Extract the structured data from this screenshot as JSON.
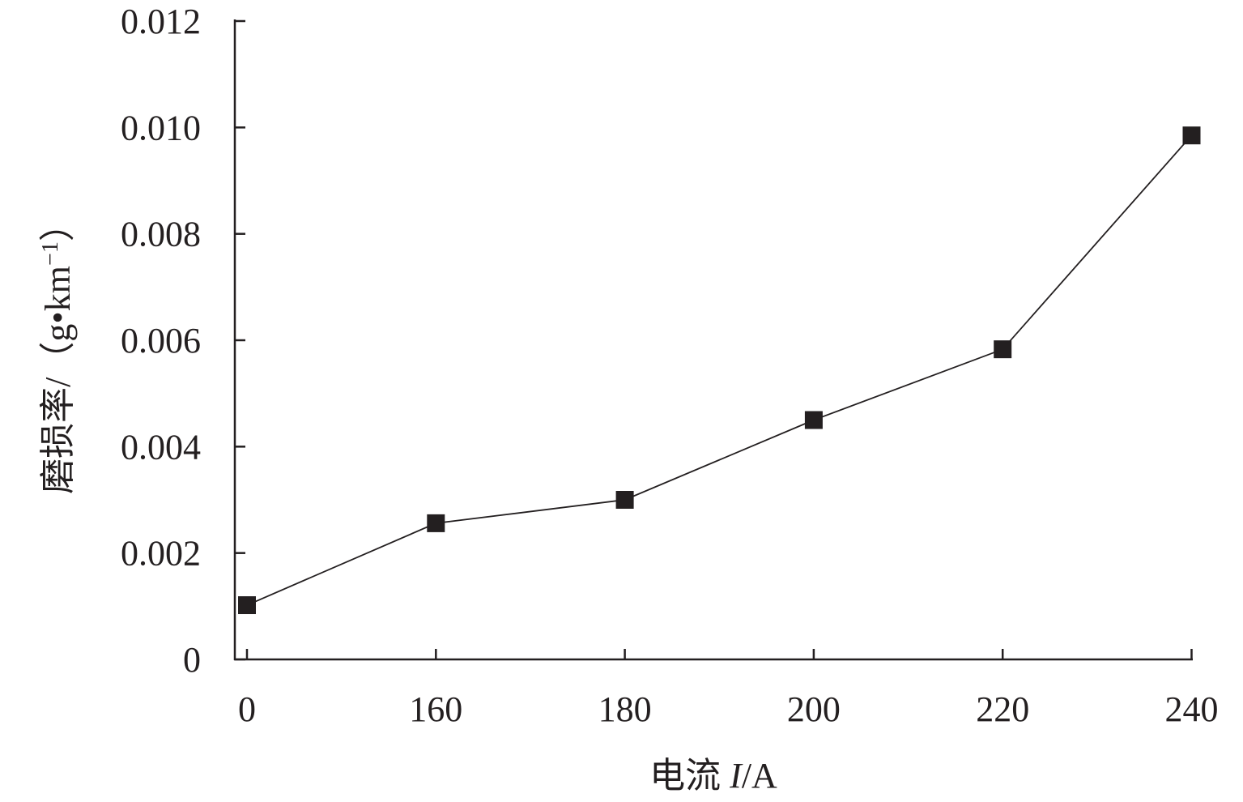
{
  "chart_data": {
    "type": "line",
    "categories": [
      "0",
      "160",
      "180",
      "200",
      "220",
      "240"
    ],
    "series": [
      {
        "values": [
          0.00102,
          0.00256,
          0.003,
          0.0045,
          0.00583,
          0.00985
        ]
      }
    ],
    "ylim": [
      0,
      0.012
    ],
    "yticks": [
      "0",
      "0.002",
      "0.004",
      "0.006",
      "0.008",
      "0.010",
      "0.012"
    ],
    "ytick_values": [
      0,
      0.002,
      0.004,
      0.006,
      0.008,
      0.01,
      0.012
    ],
    "xlabel": {
      "prefix": "电流 ",
      "var": "I",
      "suffix": "/A"
    },
    "ylabel": {
      "main": "磨损率/（g•km",
      "sup": "−1",
      "close": "）"
    },
    "marker": "square",
    "grid": false,
    "colors": {
      "ink": "#231f20"
    }
  }
}
